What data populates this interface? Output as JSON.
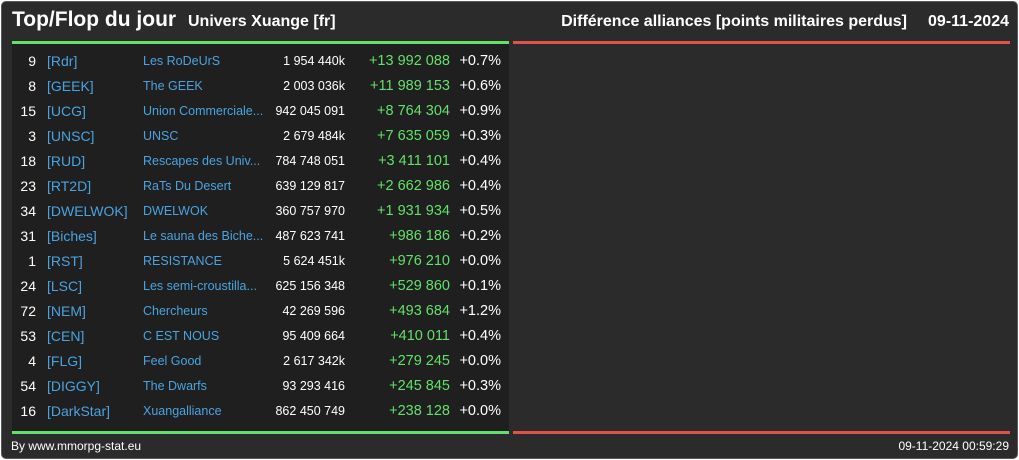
{
  "header": {
    "title": "Top/Flop du jour",
    "universe": "Univers Xuange [fr]",
    "subtitle": "Différence alliances [points militaires perdus]",
    "date": "09-11-2024"
  },
  "colors": {
    "background": "#2b2b2b",
    "top_accent": "#63e06a",
    "flop_accent": "#e0514c",
    "link": "#4aa3e0",
    "positive": "#63e06a"
  },
  "top": [
    {
      "rank": "9",
      "tag": "[Rdr]",
      "name": "Les RoDeUrS",
      "points": "1 954 440k",
      "diff": "+13 992 088",
      "pct": "+0.7%"
    },
    {
      "rank": "8",
      "tag": "[GEEK]",
      "name": "The GEEK",
      "points": "2 003 036k",
      "diff": "+11 989 153",
      "pct": "+0.6%"
    },
    {
      "rank": "15",
      "tag": "[UCG]",
      "name": "Union Commerciale...",
      "points": "942 045 091",
      "diff": "+8 764 304",
      "pct": "+0.9%"
    },
    {
      "rank": "3",
      "tag": "[UNSC]",
      "name": "UNSC",
      "points": "2 679 484k",
      "diff": "+7 635 059",
      "pct": "+0.3%"
    },
    {
      "rank": "18",
      "tag": "[RUD]",
      "name": "Rescapes des Univ...",
      "points": "784 748 051",
      "diff": "+3 411 101",
      "pct": "+0.4%"
    },
    {
      "rank": "23",
      "tag": "[RT2D]",
      "name": "RaTs Du Desert",
      "points": "639 129 817",
      "diff": "+2 662 986",
      "pct": "+0.4%"
    },
    {
      "rank": "34",
      "tag": "[DWELWOK]",
      "name": "DWELWOK",
      "points": "360 757 970",
      "diff": "+1 931 934",
      "pct": "+0.5%"
    },
    {
      "rank": "31",
      "tag": "[Biches]",
      "name": "Le sauna des Biche...",
      "points": "487 623 741",
      "diff": "+986 186",
      "pct": "+0.2%"
    },
    {
      "rank": "1",
      "tag": "[RST]",
      "name": "RESISTANCE",
      "points": "5 624 451k",
      "diff": "+976 210",
      "pct": "+0.0%"
    },
    {
      "rank": "24",
      "tag": "[LSC]",
      "name": "Les semi-croustilla...",
      "points": "625 156 348",
      "diff": "+529 860",
      "pct": "+0.1%"
    },
    {
      "rank": "72",
      "tag": "[NEM]",
      "name": "Chercheurs",
      "points": "42 269 596",
      "diff": "+493 684",
      "pct": "+1.2%"
    },
    {
      "rank": "53",
      "tag": "[CEN]",
      "name": "C EST NOUS",
      "points": "95 409 664",
      "diff": "+410 011",
      "pct": "+0.4%"
    },
    {
      "rank": "4",
      "tag": "[FLG]",
      "name": "Feel Good",
      "points": "2 617 342k",
      "diff": "+279 245",
      "pct": "+0.0%"
    },
    {
      "rank": "54",
      "tag": "[DIGGY]",
      "name": "The Dwarfs",
      "points": "93 293 416",
      "diff": "+245 845",
      "pct": "+0.3%"
    },
    {
      "rank": "16",
      "tag": "[DarkStar]",
      "name": "Xuangalliance",
      "points": "862 450 749",
      "diff": "+238 128",
      "pct": "+0.0%"
    }
  ],
  "footer": {
    "source": "By www.mmorpg-stat.eu",
    "timestamp": "09-11-2024 00:59:29"
  }
}
